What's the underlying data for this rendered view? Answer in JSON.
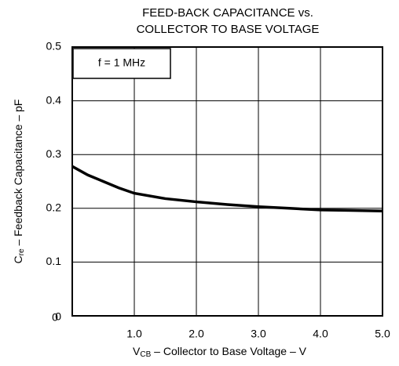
{
  "chart_data": {
    "type": "line",
    "title": [
      "FEED-BACK CAPACITANCE vs.",
      "COLLECTOR TO BASE VOLTAGE"
    ],
    "annotation": "f = 1 MHz",
    "x_label": {
      "symbol": "V",
      "subscript": "CB",
      "text": " – Collector to Base Voltage – V"
    },
    "y_label": {
      "symbol": "C",
      "subscript": "re",
      "text": " – Feedback Capacitance – pF"
    },
    "x": [
      0,
      0.25,
      0.5,
      0.75,
      1.0,
      1.5,
      2.0,
      2.5,
      3.0,
      3.5,
      4.0,
      4.5,
      5.0
    ],
    "values": [
      0.278,
      0.262,
      0.25,
      0.238,
      0.228,
      0.218,
      0.212,
      0.207,
      0.203,
      0.2,
      0.197,
      0.196,
      0.195
    ],
    "color": "#000000",
    "xlim": [
      0,
      5
    ],
    "ylim": [
      0,
      0.5
    ],
    "xticks": [
      0,
      {
        "value": 1,
        "label": "1.0"
      },
      {
        "value": 2,
        "label": "2.0"
      },
      {
        "value": 3,
        "label": "3.0"
      },
      {
        "value": 4,
        "label": "4.0"
      },
      {
        "value": 5,
        "label": "5.0"
      }
    ],
    "yticks": [
      0,
      0.1,
      0.2,
      0.3,
      0.4,
      0.5
    ],
    "grid": true
  }
}
